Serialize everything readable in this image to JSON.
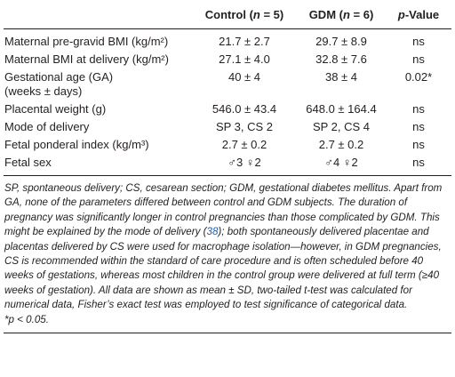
{
  "table": {
    "headers": {
      "parameter": "",
      "control": "Control (",
      "control_n": "n",
      "control_tail": " = 5)",
      "gdm": "GDM (",
      "gdm_n": "n",
      "gdm_tail": " = 6)",
      "pvalue_italic": "p",
      "pvalue_tail": "-Value"
    },
    "rows": [
      {
        "parameter": "Maternal pre-gravid BMI (kg/m²)",
        "control": "21.7 ± 2.7",
        "gdm": "29.7 ± 8.9",
        "p": "ns"
      },
      {
        "parameter": "Maternal BMI at delivery (kg/m²)",
        "control": "27.1 ± 4.0",
        "gdm": "32.8 ± 7.6",
        "p": "ns"
      },
      {
        "parameter": "Gestational age (GA)",
        "parameter_line2": "(weeks ± days)",
        "control": "40 ± 4",
        "gdm": "38 ± 4",
        "p": "0.02*"
      },
      {
        "parameter": "Placental weight (g)",
        "control": "546.0 ± 43.4",
        "gdm": "648.0 ± 164.4",
        "p": "ns"
      },
      {
        "parameter": "Mode of delivery",
        "control": "SP 3, CS 2",
        "gdm": "SP 2, CS 4",
        "p": "ns"
      },
      {
        "parameter": "Fetal ponderal index (kg/m³)",
        "control": "2.7 ± 0.2",
        "gdm": "2.7 ± 0.2",
        "p": "ns"
      },
      {
        "parameter": "Fetal sex",
        "control": "♂3 ♀2",
        "gdm": "♂4 ♀2",
        "p": "ns"
      }
    ]
  },
  "footnote": {
    "part1": "SP, spontaneous delivery; CS, cesarean section; GDM, gestational diabetes mellitus. Apart from GA, none of the parameters differed between control and GDM subjects. The duration of pregnancy was significantly longer in control pregnancies than those complicated by GDM. This might be explained by the mode of delivery (",
    "ref": "38",
    "part2": "); both spontaneously delivered placentae and placentas delivered by CS were used for macrophage isolation—however, in GDM pregnancies, CS is recommended within the standard of care procedure and is often scheduled before 40 weeks of gestations, whereas most children in the control group were delivered at full term (≥40 weeks of gestation). All data are shown as mean ± SD, two-tailed t-test was calculated for numerical data, Fisher’s exact test was employed to test significance of categorical data.",
    "significance": "*p < 0.05."
  }
}
